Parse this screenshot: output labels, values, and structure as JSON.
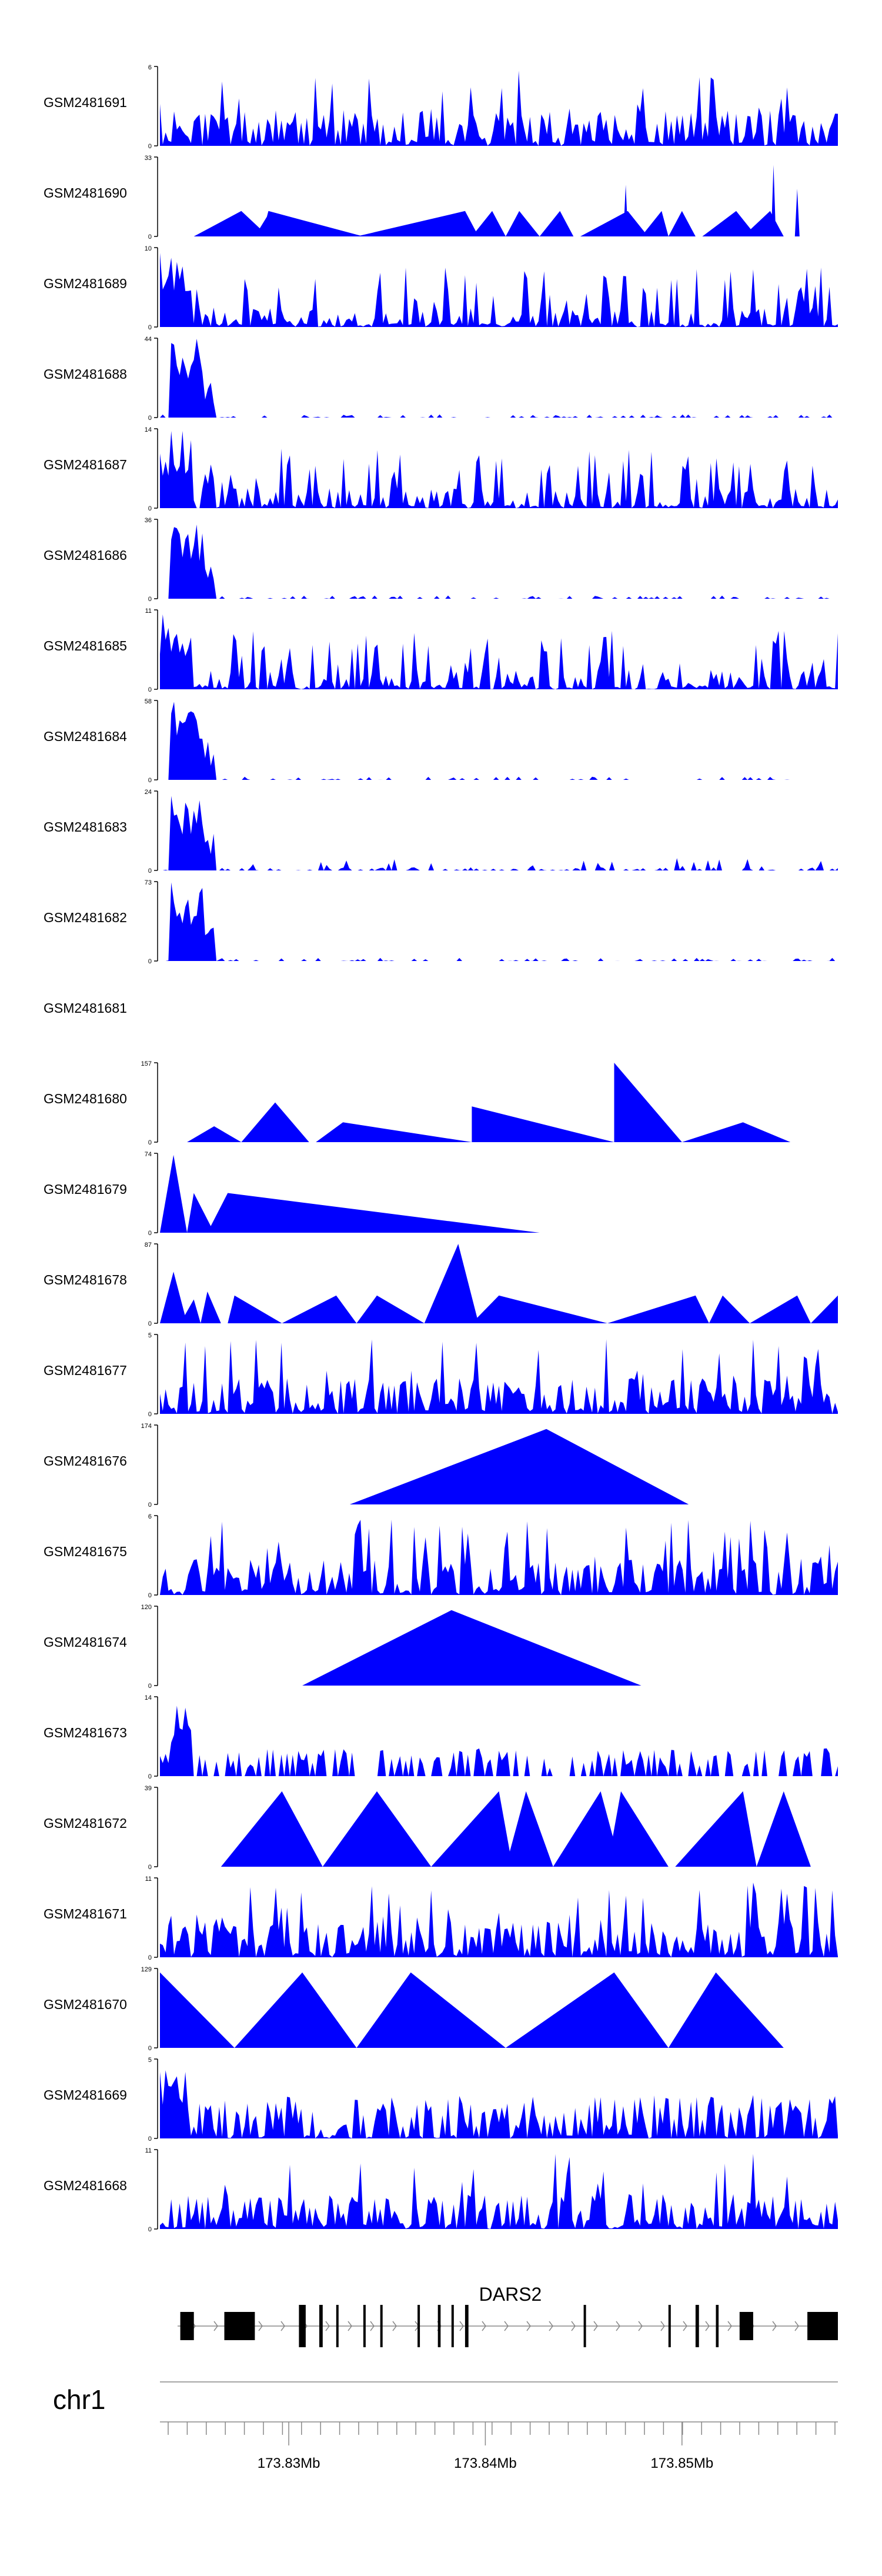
{
  "chart_data": {
    "type": "area",
    "title": "",
    "color": "#0000ff",
    "axis_color": "#000000",
    "tracks": [
      {
        "name": "GSM2481691",
        "ymax": 6,
        "profile": "dense-even",
        "seed": 11
      },
      {
        "name": "GSM2481690",
        "ymax": 33,
        "profile": "triangles",
        "seed": 12,
        "peaks": [
          [
            0.05,
            0
          ],
          [
            0.12,
            0.32
          ],
          [
            0.16,
            0
          ],
          [
            0.16,
            0
          ],
          [
            0.16,
            0
          ],
          [
            0.155,
            0
          ],
          [
            0.18,
            0.05
          ],
          [
            0.16,
            0
          ],
          [
            0.21,
            0
          ],
          [
            0.13,
            0
          ]
        ],
        "shapes": [
          [
            0.05,
            0.12,
            0.16,
            0.32
          ],
          [
            0.14,
            0.16,
            0.19,
            0.28
          ],
          [
            0.15,
            0.16,
            0.3,
            0.32
          ],
          [
            0.29,
            0.45,
            0.47,
            0.32
          ],
          [
            0.46,
            0.49,
            0.51,
            0.32
          ],
          [
            0.51,
            0.53,
            0.56,
            0.32
          ],
          [
            0.56,
            0.59,
            0.61,
            0.32
          ],
          [
            0.62,
            0.69,
            0.72,
            0.32
          ],
          [
            0.71,
            0.74,
            0.75,
            0.32
          ],
          [
            0.75,
            0.77,
            0.79,
            0.32
          ],
          [
            0.8,
            0.85,
            0.88,
            0.32
          ],
          [
            0.86,
            0.9,
            0.92,
            0.32
          ]
        ],
        "spikes": [
          [
            0.687,
            0.65
          ],
          [
            0.905,
            0.9
          ],
          [
            0.94,
            0.6
          ]
        ]
      },
      {
        "name": "GSM2481689",
        "ymax": 10,
        "profile": "dense-front",
        "seed": 13
      },
      {
        "name": "GSM2481688",
        "ymax": 44,
        "profile": "big-front",
        "seed": 14
      },
      {
        "name": "GSM2481687",
        "ymax": 14,
        "profile": "dense-front",
        "seed": 15
      },
      {
        "name": "GSM2481686",
        "ymax": 36,
        "profile": "big-front",
        "seed": 16
      },
      {
        "name": "GSM2481685",
        "ymax": 11,
        "profile": "dense-front",
        "seed": 17
      },
      {
        "name": "GSM2481684",
        "ymax": 58,
        "profile": "big-front",
        "seed": 18
      },
      {
        "name": "GSM2481683",
        "ymax": 24,
        "profile": "big-front-mid",
        "seed": 19
      },
      {
        "name": "GSM2481682",
        "ymax": 73,
        "profile": "big-front",
        "seed": 20
      },
      {
        "name": "GSM2481681",
        "ymax": null,
        "profile": "empty",
        "seed": 21
      },
      {
        "name": "GSM2481680",
        "ymax": 157,
        "profile": "triangles",
        "seed": 22,
        "shapes": [
          [
            0.04,
            0.08,
            0.12,
            0.2
          ],
          [
            0.12,
            0.17,
            0.22,
            0.5
          ],
          [
            0.23,
            0.27,
            0.46,
            0.25
          ],
          [
            0.46,
            0.46,
            0.67,
            0.45
          ],
          [
            0.67,
            0.67,
            0.77,
            1.0
          ],
          [
            0.77,
            0.86,
            0.93,
            0.25
          ]
        ]
      },
      {
        "name": "GSM2481679",
        "ymax": 74,
        "profile": "triangles",
        "seed": 23,
        "shapes": [
          [
            0.0,
            0.02,
            0.04,
            0.98
          ],
          [
            0.04,
            0.05,
            0.08,
            0.5
          ],
          [
            0.07,
            0.1,
            0.56,
            0.5
          ]
        ]
      },
      {
        "name": "GSM2481678",
        "ymax": 87,
        "profile": "triangles",
        "seed": 24,
        "shapes": [
          [
            0.0,
            0.02,
            0.04,
            0.65
          ],
          [
            0.03,
            0.05,
            0.06,
            0.3
          ],
          [
            0.06,
            0.07,
            0.09,
            0.4
          ],
          [
            0.1,
            0.11,
            0.18,
            0.35
          ],
          [
            0.18,
            0.26,
            0.29,
            0.35
          ],
          [
            0.29,
            0.32,
            0.39,
            0.35
          ],
          [
            0.39,
            0.44,
            0.47,
            1.0
          ],
          [
            0.46,
            0.5,
            0.66,
            0.35
          ],
          [
            0.66,
            0.79,
            0.81,
            0.35
          ],
          [
            0.81,
            0.83,
            0.87,
            0.35
          ],
          [
            0.87,
            0.94,
            0.96,
            0.35
          ],
          [
            0.96,
            1.0,
            1.0,
            0.35
          ]
        ]
      },
      {
        "name": "GSM2481677",
        "ymax": 5,
        "profile": "dense-even",
        "seed": 25
      },
      {
        "name": "GSM2481676",
        "ymax": 174,
        "profile": "triangles",
        "seed": 26,
        "shapes": [
          [
            0.28,
            0.57,
            0.78,
            0.95
          ]
        ]
      },
      {
        "name": "GSM2481675",
        "ymax": 6,
        "profile": "dense-even",
        "seed": 27
      },
      {
        "name": "GSM2481674",
        "ymax": 120,
        "profile": "triangles",
        "seed": 28,
        "shapes": [
          [
            0.21,
            0.43,
            0.71,
            0.95
          ]
        ]
      },
      {
        "name": "GSM2481673",
        "ymax": 14,
        "profile": "sparse-front",
        "seed": 29
      },
      {
        "name": "GSM2481672",
        "ymax": 39,
        "profile": "triangles",
        "seed": 30,
        "shapes": [
          [
            0.09,
            0.18,
            0.24,
            0.95
          ],
          [
            0.24,
            0.32,
            0.4,
            0.95
          ],
          [
            0.4,
            0.5,
            0.52,
            0.95
          ],
          [
            0.51,
            0.54,
            0.58,
            0.95
          ],
          [
            0.58,
            0.65,
            0.68,
            0.95
          ],
          [
            0.66,
            0.68,
            0.75,
            0.95
          ],
          [
            0.76,
            0.86,
            0.88,
            0.95
          ],
          [
            0.88,
            0.92,
            0.96,
            0.95
          ]
        ]
      },
      {
        "name": "GSM2481671",
        "ymax": 11,
        "profile": "dense-even",
        "seed": 31
      },
      {
        "name": "GSM2481670",
        "ymax": 129,
        "profile": "triangles",
        "seed": 32,
        "shapes": [
          [
            0.0,
            0.0,
            0.11,
            0.95
          ],
          [
            0.11,
            0.21,
            0.29,
            0.95
          ],
          [
            0.29,
            0.37,
            0.51,
            0.95
          ],
          [
            0.51,
            0.67,
            0.75,
            0.95
          ],
          [
            0.75,
            0.82,
            0.92,
            0.95
          ]
        ]
      },
      {
        "name": "GSM2481669",
        "ymax": 5,
        "profile": "dense-front-light",
        "seed": 33
      },
      {
        "name": "GSM2481668",
        "ymax": 11,
        "profile": "dense-even",
        "seed": 34
      }
    ],
    "gene": {
      "name": "DARS2",
      "exons": [
        [
          0.03,
          0.05
        ],
        [
          0.095,
          0.14
        ],
        [
          0.205,
          0.215
        ],
        [
          0.235,
          0.24
        ],
        [
          0.26,
          0.262
        ],
        [
          0.3,
          0.303
        ],
        [
          0.325,
          0.328
        ],
        [
          0.38,
          0.383
        ],
        [
          0.41,
          0.414
        ],
        [
          0.43,
          0.433
        ],
        [
          0.45,
          0.455
        ],
        [
          0.625,
          0.628
        ],
        [
          0.75,
          0.753
        ],
        [
          0.79,
          0.795
        ],
        [
          0.82,
          0.824
        ],
        [
          0.855,
          0.875
        ],
        [
          0.955,
          1.0
        ]
      ],
      "strand": "+"
    },
    "chromosome": "chr1",
    "axis": {
      "ticks": [
        "173.83Mb",
        "173.84Mb",
        "173.85Mb"
      ],
      "tick_positions_rel": [
        0.19,
        0.48,
        0.77
      ]
    }
  }
}
